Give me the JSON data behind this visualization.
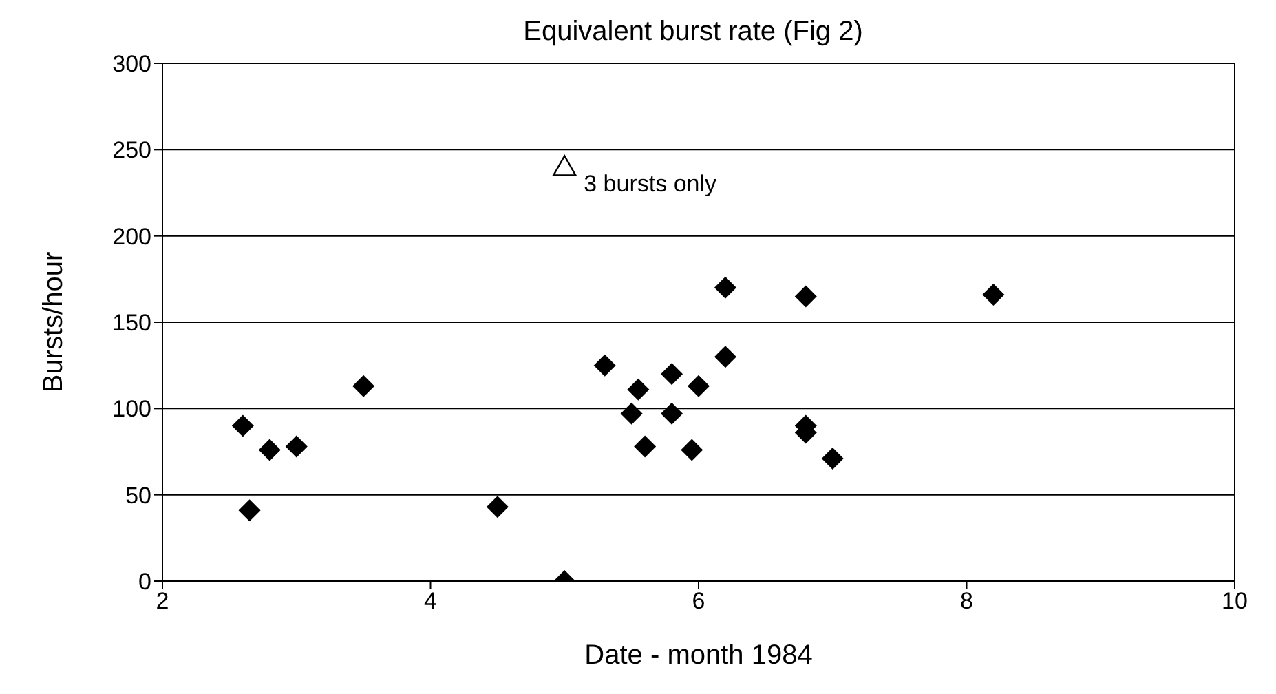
{
  "chart_data": {
    "type": "scatter",
    "title": "Equivalent burst rate (Fig 2)",
    "xlabel": "Date - month 1984",
    "ylabel": "Bursts/hour",
    "xlim": [
      2,
      10
    ],
    "xticks": [
      2,
      4,
      6,
      8,
      10
    ],
    "ylim": [
      0,
      300
    ],
    "yticks": [
      0,
      50,
      100,
      150,
      200,
      250,
      300
    ],
    "grid": "y",
    "legend": false,
    "series": [
      {
        "color": "#000000",
        "marker": "diamond",
        "x": [
          2.6,
          2.65,
          2.8,
          3.0,
          3.5,
          4.5,
          5.0,
          5.3,
          5.5,
          5.55,
          5.6,
          5.8,
          5.8,
          5.95,
          6.0,
          6.2,
          6.2,
          6.8,
          6.8,
          6.8,
          7.0,
          8.2
        ],
        "values": [
          90,
          41,
          76,
          78,
          113,
          43,
          0,
          125,
          97,
          111,
          78,
          120,
          97,
          76,
          113,
          170,
          130,
          165,
          90,
          86,
          71,
          166
        ]
      },
      {
        "color": "#000000",
        "marker": "triangle",
        "x": [
          5.0
        ],
        "values": [
          240
        ]
      }
    ],
    "annotations": [
      {
        "text": "3 bursts only",
        "x": 5.0,
        "y": 240
      }
    ]
  }
}
